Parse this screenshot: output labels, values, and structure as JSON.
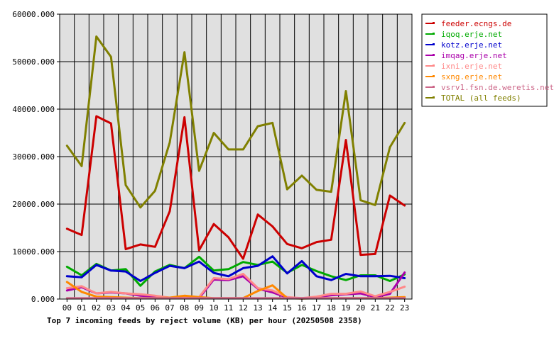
{
  "chart_data": {
    "type": "line",
    "title": "Top 7 incoming feeds by reject volume (KB) per hour (20250508 2358)",
    "xlabel": "",
    "ylabel": "",
    "ylim": [
      0,
      60000
    ],
    "yticks": [
      "0.000",
      "10000.000",
      "20000.000",
      "30000.000",
      "40000.000",
      "50000.000",
      "60000.000"
    ],
    "categories": [
      "00",
      "01",
      "02",
      "03",
      "04",
      "05",
      "06",
      "07",
      "08",
      "09",
      "10",
      "11",
      "12",
      "13",
      "14",
      "15",
      "16",
      "17",
      "18",
      "19",
      "20",
      "21",
      "22",
      "23"
    ],
    "grid": true,
    "legend_position": "right",
    "series": [
      {
        "name": "feeder.ecngs.de",
        "color": "#cc0000",
        "values": [
          14800,
          13500,
          38500,
          37000,
          10500,
          11500,
          11000,
          18500,
          38300,
          10300,
          15800,
          13000,
          8500,
          17800,
          15300,
          11600,
          10700,
          12000,
          12500,
          33500,
          9300,
          9500,
          21800,
          19700
        ]
      },
      {
        "name": "iqoq.erje.net",
        "color": "#00aa00",
        "values": [
          6800,
          5000,
          7400,
          6000,
          6300,
          2800,
          5800,
          7200,
          6500,
          8900,
          6000,
          6300,
          7800,
          7200,
          7900,
          5500,
          7200,
          5900,
          4800,
          4000,
          5000,
          5000,
          3800,
          5200
        ]
      },
      {
        "name": "kotz.erje.net",
        "color": "#0000cc",
        "values": [
          4800,
          4600,
          7200,
          6000,
          5800,
          3800,
          5500,
          7000,
          6500,
          7900,
          5500,
          4800,
          6500,
          7000,
          9000,
          5400,
          8000,
          4800,
          4000,
          5300,
          4800,
          4800,
          4900,
          4400
        ]
      },
      {
        "name": "imqag.erje.net",
        "color": "#aa00aa",
        "values": [
          1800,
          2500,
          1200,
          1400,
          1200,
          700,
          500,
          200,
          500,
          200,
          4100,
          4000,
          4800,
          2200,
          1400,
          300,
          100,
          400,
          800,
          1000,
          1200,
          400,
          1100,
          5600
        ]
      },
      {
        "name": "ixni.erje.net",
        "color": "#ff8888",
        "values": [
          2300,
          2700,
          1200,
          1500,
          1200,
          1000,
          700,
          300,
          400,
          400,
          4400,
          4200,
          5300,
          2300,
          1800,
          400,
          200,
          500,
          1100,
          1100,
          1600,
          600,
          1500,
          2600
        ]
      },
      {
        "name": "sxng.erje.net",
        "color": "#ff8800",
        "values": [
          3600,
          1500,
          500,
          400,
          300,
          200,
          200,
          300,
          700,
          400,
          200,
          200,
          200,
          1700,
          2900,
          200,
          100,
          200,
          200,
          200,
          200,
          200,
          300,
          400
        ]
      },
      {
        "name": "vsrv1.fsn.de.weretis.net",
        "color": "#cc6688",
        "values": [
          200,
          200,
          200,
          200,
          200,
          200,
          200,
          200,
          200,
          200,
          200,
          200,
          200,
          200,
          200,
          200,
          200,
          200,
          200,
          200,
          200,
          200,
          200,
          200
        ]
      },
      {
        "name": "TOTAL (all feeds)",
        "color": "#808000",
        "values": [
          32300,
          28000,
          55300,
          51000,
          24000,
          19300,
          22800,
          33000,
          52000,
          27000,
          35000,
          31500,
          31500,
          36400,
          37100,
          23100,
          26000,
          23000,
          22600,
          43800,
          20800,
          19800,
          32000,
          37100
        ]
      }
    ]
  }
}
